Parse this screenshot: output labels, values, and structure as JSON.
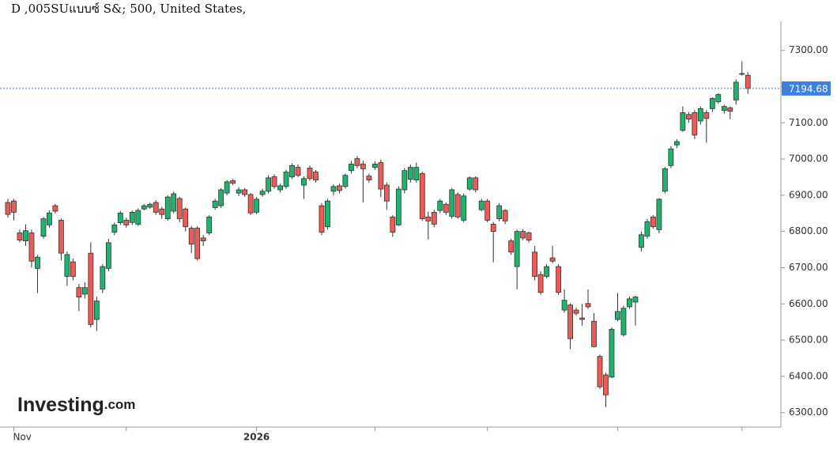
{
  "chart_data": {
    "type": "candlestick",
    "title": "D ,005SUแบบซ์ S&; 500, United States,",
    "watermark": "Investing",
    "watermark_suffix": ".com",
    "up_color": "#1fb46e",
    "down_color": "#ee5a55",
    "current_price": 7194.68,
    "current_price_color": "#3f7fe0",
    "ylim": [
      6260,
      7380
    ],
    "yticks": [
      {
        "value": 6300,
        "label": "6300.00"
      },
      {
        "value": 6400,
        "label": "6400.00"
      },
      {
        "value": 6500,
        "label": "6500.00"
      },
      {
        "value": 6600,
        "label": "6600.00"
      },
      {
        "value": 6700,
        "label": "6700.00"
      },
      {
        "value": 6800,
        "label": "6800.00"
      },
      {
        "value": 6900,
        "label": "6900.00"
      },
      {
        "value": 7000,
        "label": "7000.00"
      },
      {
        "value": 7100,
        "label": "7100.00"
      },
      {
        "value": 7200,
        "label": "7200.00"
      },
      {
        "value": 7300,
        "label": "7300.00"
      }
    ],
    "xticks": [
      1,
      20,
      42,
      62,
      81,
      103,
      124
    ],
    "categories": [
      null,
      "Nov",
      null,
      null,
      null,
      null,
      null,
      null,
      null,
      null,
      null,
      null,
      null,
      null,
      null,
      null,
      null,
      null,
      null,
      null,
      null,
      null,
      null,
      null,
      null,
      null,
      null,
      null,
      null,
      null,
      null,
      null,
      null,
      null,
      null,
      null,
      null,
      null,
      null,
      null,
      null,
      null,
      "2026",
      null,
      null,
      null,
      null,
      null,
      null,
      null,
      null,
      null,
      null,
      null,
      null,
      null,
      null,
      null,
      null,
      null,
      null,
      null,
      null,
      null,
      null,
      null,
      null,
      null,
      null,
      null,
      null,
      null,
      null,
      null,
      null,
      null,
      null,
      null,
      null,
      null,
      null,
      null,
      null,
      null,
      null,
      null,
      null,
      null,
      null,
      null,
      null,
      null,
      null,
      null,
      null,
      null,
      null,
      null,
      null,
      null,
      null,
      null,
      null,
      null,
      null,
      null,
      null,
      null,
      null,
      null,
      null,
      null,
      null,
      null,
      null,
      null,
      null,
      null,
      null,
      null,
      null,
      null,
      null,
      null,
      null,
      null
    ],
    "open": [
      6880,
      6884,
      6796,
      6774,
      6796,
      6698,
      6787,
      6818,
      6871,
      6831,
      6676,
      6716,
      6645,
      6627,
      6740,
      6557,
      6641,
      6698,
      6798,
      6824,
      6831,
      6825,
      6820,
      6862,
      6867,
      6880,
      6862,
      6835,
      6856,
      6891,
      6862,
      6809,
      6809,
      6782,
      6796,
      6866,
      6871,
      6906,
      6940,
      6906,
      6915,
      6902,
      6853,
      6902,
      6911,
      6951,
      6915,
      6924,
      6951,
      6977,
      6928,
      6975,
      6964,
      6871,
      6813,
      6911,
      6926,
      6924,
      6968,
      7001,
      6986,
      6953,
      6977,
      6990,
      6928,
      6840,
      6818,
      6915,
      6944,
      6942,
      6960,
      6840,
      6853,
      6858,
      6875,
      6842,
      6902,
      6831,
      6917,
      6948,
      6860,
      6884,
      6820,
      6835,
      6858,
      6774,
      6703,
      6800,
      6796,
      6743,
      6681,
      6676,
      6727,
      6703,
      6583,
      6597,
      6583,
      6561,
      6601,
      6552,
      6455,
      6404,
      6398,
      6557,
      6515,
      6592,
      6605,
      6756,
      6787,
      6840,
      6805,
      6911,
      6982,
      7039,
      7079,
      7123,
      7128,
      7105,
      7128,
      7139,
      7158,
      7134,
      7141,
      7163,
      7236,
      7231
    ],
    "high": [
      6890,
      6890,
      6805,
      6820,
      6805,
      6735,
      6840,
      6858,
      6876,
      6836,
      6745,
      6725,
      6655,
      6660,
      6770,
      6620,
      6710,
      6780,
      6825,
      6857,
      6838,
      6858,
      6864,
      6876,
      6880,
      6886,
      6868,
      6900,
      6910,
      6896,
      6866,
      6815,
      6815,
      6790,
      6845,
      6890,
      6920,
      6942,
      6945,
      6922,
      6920,
      6906,
      6895,
      6918,
      6955,
      6958,
      6932,
      6970,
      6988,
      6985,
      6952,
      6982,
      6970,
      6878,
      6890,
      6930,
      6932,
      6960,
      6995,
      7008,
      6995,
      6960,
      6994,
      6998,
      6935,
      6845,
      6925,
      6975,
      6985,
      6990,
      6965,
      6855,
      6860,
      6890,
      6880,
      6920,
      6908,
      6905,
      6952,
      6952,
      6890,
      6890,
      6826,
      6878,
      6862,
      6780,
      6805,
      6806,
      6800,
      6760,
      6690,
      6710,
      6760,
      6710,
      6640,
      6602,
      6590,
      6600,
      6640,
      6575,
      6460,
      6410,
      6535,
      6630,
      6595,
      6620,
      6622,
      6800,
      6835,
      6845,
      6892,
      6978,
      7035,
      7055,
      7145,
      7130,
      7135,
      7145,
      7135,
      7170,
      7182,
      7150,
      7145,
      7220,
      7270,
      7240
    ],
    "low": [
      6838,
      6830,
      6770,
      6760,
      6700,
      6630,
      6780,
      6810,
      6850,
      6720,
      6650,
      6665,
      6580,
      6615,
      6535,
      6525,
      6630,
      6690,
      6790,
      6818,
      6810,
      6818,
      6815,
      6858,
      6862,
      6846,
      6835,
      6830,
      6850,
      6825,
      6800,
      6740,
      6720,
      6760,
      6790,
      6860,
      6865,
      6900,
      6928,
      6898,
      6896,
      6845,
      6848,
      6896,
      6905,
      6918,
      6908,
      6918,
      6945,
      6950,
      6890,
      6940,
      6935,
      6790,
      6805,
      6900,
      6905,
      6918,
      6960,
      6975,
      6880,
      6935,
      6970,
      6895,
      6860,
      6785,
      6815,
      6905,
      6935,
      6935,
      6830,
      6778,
      6812,
      6850,
      6845,
      6835,
      6835,
      6825,
      6912,
      6908,
      6855,
      6825,
      6715,
      6828,
      6820,
      6735,
      6640,
      6776,
      6770,
      6665,
      6625,
      6670,
      6712,
      6625,
      6576,
      6475,
      6568,
      6540,
      6586,
      6480,
      6365,
      6315,
      6395,
      6552,
      6510,
      6586,
      6540,
      6745,
      6780,
      6808,
      6795,
      6905,
      6975,
      7030,
      7075,
      7100,
      7055,
      7095,
      7045,
      7130,
      7152,
      7125,
      7110,
      7150,
      7230,
      7180
    ],
    "close": [
      6847,
      6853,
      6776,
      6802,
      6718,
      6729,
      6835,
      6851,
      6856,
      6740,
      6736,
      6676,
      6619,
      6645,
      6543,
      6608,
      6703,
      6769,
      6818,
      6851,
      6818,
      6853,
      6858,
      6871,
      6875,
      6853,
      6847,
      6895,
      6904,
      6835,
      6813,
      6765,
      6725,
      6774,
      6840,
      6884,
      6915,
      6937,
      6933,
      6915,
      6902,
      6851,
      6889,
      6911,
      6948,
      6924,
      6926,
      6964,
      6982,
      6955,
      6946,
      6946,
      6942,
      6798,
      6884,
      6924,
      6913,
      6955,
      6986,
      6982,
      6973,
      6942,
      6986,
      6917,
      6884,
      6798,
      6917,
      6968,
      6977,
      6977,
      6835,
      6829,
      6820,
      6884,
      6853,
      6915,
      6840,
      6898,
      6948,
      6915,
      6884,
      6831,
      6800,
      6871,
      6829,
      6743,
      6800,
      6782,
      6776,
      6676,
      6632,
      6703,
      6718,
      6632,
      6610,
      6504,
      6574,
      6557,
      6592,
      6482,
      6371,
      6349,
      6530,
      6579,
      6588,
      6614,
      6619,
      6791,
      6827,
      6813,
      6889,
      6973,
      7028,
      7048,
      7128,
      7110,
      7066,
      7139,
      7112,
      7167,
      7178,
      7145,
      7132,
      7212,
      7234,
      7194.68
    ]
  }
}
